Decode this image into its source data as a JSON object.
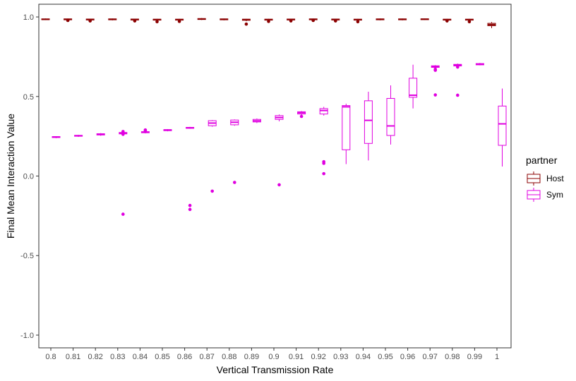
{
  "chart_data": {
    "type": "boxplot",
    "xlabel": "Vertical Transmission Rate",
    "ylabel": "Final Mean Interaction Value",
    "ylim": [
      -1.08,
      1.08
    ],
    "yticks": [
      -1.0,
      -0.5,
      0.0,
      0.5,
      1.0
    ],
    "ytick_labels": [
      "-1.0",
      "-0.5",
      "0.0",
      "0.5",
      "1.0"
    ],
    "categories": [
      "0.8",
      "0.81",
      "0.82",
      "0.83",
      "0.84",
      "0.85",
      "0.86",
      "0.87",
      "0.88",
      "0.89",
      "0.9",
      "0.91",
      "0.92",
      "0.93",
      "0.94",
      "0.95",
      "0.96",
      "0.97",
      "0.98",
      "0.99",
      "1"
    ],
    "grid": false,
    "legend": {
      "title": "partner",
      "position": "right"
    },
    "series": [
      {
        "name": "Host",
        "color": "#8b0000",
        "boxes": [
          {
            "q1": 0.983,
            "median": 0.985,
            "q3": 0.988,
            "wlo": 0.98,
            "whi": 0.99,
            "outliers": []
          },
          {
            "q1": 0.982,
            "median": 0.985,
            "q3": 0.988,
            "wlo": 0.979,
            "whi": 0.99,
            "outliers": [
              0.978
            ]
          },
          {
            "q1": 0.981,
            "median": 0.984,
            "q3": 0.987,
            "wlo": 0.978,
            "whi": 0.989,
            "outliers": [
              0.975
            ]
          },
          {
            "q1": 0.982,
            "median": 0.985,
            "q3": 0.988,
            "wlo": 0.979,
            "whi": 0.99,
            "outliers": []
          },
          {
            "q1": 0.981,
            "median": 0.984,
            "q3": 0.987,
            "wlo": 0.978,
            "whi": 0.989,
            "outliers": [
              0.975
            ]
          },
          {
            "q1": 0.98,
            "median": 0.983,
            "q3": 0.986,
            "wlo": 0.977,
            "whi": 0.988,
            "outliers": [
              0.97
            ]
          },
          {
            "q1": 0.98,
            "median": 0.983,
            "q3": 0.986,
            "wlo": 0.976,
            "whi": 0.988,
            "outliers": [
              0.972
            ]
          },
          {
            "q1": 0.984,
            "median": 0.987,
            "q3": 0.99,
            "wlo": 0.981,
            "whi": 0.993,
            "outliers": []
          },
          {
            "q1": 0.982,
            "median": 0.985,
            "q3": 0.988,
            "wlo": 0.979,
            "whi": 0.99,
            "outliers": []
          },
          {
            "q1": 0.979,
            "median": 0.983,
            "q3": 0.986,
            "wlo": 0.973,
            "whi": 0.988,
            "outliers": [
              0.955
            ]
          },
          {
            "q1": 0.98,
            "median": 0.983,
            "q3": 0.986,
            "wlo": 0.976,
            "whi": 0.988,
            "outliers": [
              0.972
            ]
          },
          {
            "q1": 0.981,
            "median": 0.984,
            "q3": 0.987,
            "wlo": 0.977,
            "whi": 0.989,
            "outliers": [
              0.975
            ]
          },
          {
            "q1": 0.982,
            "median": 0.985,
            "q3": 0.988,
            "wlo": 0.979,
            "whi": 0.99,
            "outliers": [
              0.978
            ]
          },
          {
            "q1": 0.981,
            "median": 0.984,
            "q3": 0.987,
            "wlo": 0.978,
            "whi": 0.989,
            "outliers": [
              0.975
            ]
          },
          {
            "q1": 0.98,
            "median": 0.983,
            "q3": 0.986,
            "wlo": 0.977,
            "whi": 0.988,
            "outliers": [
              0.97
            ]
          },
          {
            "q1": 0.982,
            "median": 0.985,
            "q3": 0.988,
            "wlo": 0.979,
            "whi": 0.99,
            "outliers": []
          },
          {
            "q1": 0.982,
            "median": 0.985,
            "q3": 0.988,
            "wlo": 0.979,
            "whi": 0.99,
            "outliers": []
          },
          {
            "q1": 0.983,
            "median": 0.986,
            "q3": 0.988,
            "wlo": 0.981,
            "whi": 0.99,
            "outliers": []
          },
          {
            "q1": 0.98,
            "median": 0.983,
            "q3": 0.986,
            "wlo": 0.976,
            "whi": 0.988,
            "outliers": [
              0.975
            ]
          },
          {
            "q1": 0.98,
            "median": 0.983,
            "q3": 0.986,
            "wlo": 0.977,
            "whi": 0.988,
            "outliers": [
              0.97
            ]
          },
          {
            "q1": 0.945,
            "median": 0.952,
            "q3": 0.96,
            "wlo": 0.93,
            "whi": 0.968,
            "outliers": []
          }
        ]
      },
      {
        "name": "Sym",
        "color": "#e000e0",
        "boxes": [
          {
            "q1": 0.242,
            "median": 0.245,
            "q3": 0.248,
            "wlo": 0.238,
            "whi": 0.25,
            "outliers": []
          },
          {
            "q1": 0.25,
            "median": 0.253,
            "q3": 0.256,
            "wlo": 0.246,
            "whi": 0.259,
            "outliers": []
          },
          {
            "q1": 0.258,
            "median": 0.262,
            "q3": 0.266,
            "wlo": 0.253,
            "whi": 0.27,
            "outliers": []
          },
          {
            "q1": 0.265,
            "median": 0.27,
            "q3": 0.274,
            "wlo": 0.259,
            "whi": 0.278,
            "outliers": [
              0.262,
              0.28,
              -0.24
            ]
          },
          {
            "q1": 0.272,
            "median": 0.276,
            "q3": 0.279,
            "wlo": 0.268,
            "whi": 0.283,
            "outliers": [
              0.29,
              0.285
            ]
          },
          {
            "q1": 0.285,
            "median": 0.289,
            "q3": 0.292,
            "wlo": 0.281,
            "whi": 0.295,
            "outliers": []
          },
          {
            "q1": 0.3,
            "median": 0.303,
            "q3": 0.306,
            "wlo": 0.297,
            "whi": 0.309,
            "outliers": [
              -0.185,
              -0.21
            ]
          },
          {
            "q1": 0.316,
            "median": 0.333,
            "q3": 0.348,
            "wlo": 0.31,
            "whi": 0.352,
            "outliers": [
              -0.095
            ]
          },
          {
            "q1": 0.322,
            "median": 0.338,
            "q3": 0.352,
            "wlo": 0.316,
            "whi": 0.356,
            "outliers": [
              -0.04
            ]
          },
          {
            "q1": 0.34,
            "median": 0.347,
            "q3": 0.356,
            "wlo": 0.333,
            "whi": 0.362,
            "outliers": []
          },
          {
            "q1": 0.356,
            "median": 0.368,
            "q3": 0.38,
            "wlo": 0.344,
            "whi": 0.387,
            "outliers": [
              -0.055
            ]
          },
          {
            "q1": 0.39,
            "median": 0.398,
            "q3": 0.404,
            "wlo": 0.382,
            "whi": 0.409,
            "outliers": [
              0.375
            ]
          },
          {
            "q1": 0.39,
            "median": 0.412,
            "q3": 0.424,
            "wlo": 0.38,
            "whi": 0.435,
            "outliers": [
              0.09,
              0.08,
              0.015
            ]
          },
          {
            "q1": 0.165,
            "median": 0.435,
            "q3": 0.443,
            "wlo": 0.075,
            "whi": 0.455,
            "outliers": []
          },
          {
            "q1": 0.205,
            "median": 0.35,
            "q3": 0.473,
            "wlo": 0.098,
            "whi": 0.53,
            "outliers": []
          },
          {
            "q1": 0.255,
            "median": 0.315,
            "q3": 0.488,
            "wlo": 0.198,
            "whi": 0.57,
            "outliers": []
          },
          {
            "q1": 0.495,
            "median": 0.508,
            "q3": 0.615,
            "wlo": 0.425,
            "whi": 0.7,
            "outliers": []
          },
          {
            "q1": 0.683,
            "median": 0.688,
            "q3": 0.693,
            "wlo": 0.678,
            "whi": 0.697,
            "outliers": [
              0.672,
              0.665,
              0.51
            ]
          },
          {
            "q1": 0.692,
            "median": 0.697,
            "q3": 0.702,
            "wlo": 0.688,
            "whi": 0.707,
            "outliers": [
              0.685,
              0.508
            ]
          },
          {
            "q1": 0.699,
            "median": 0.703,
            "q3": 0.707,
            "wlo": 0.696,
            "whi": 0.711,
            "outliers": []
          },
          {
            "q1": 0.193,
            "median": 0.328,
            "q3": 0.44,
            "wlo": 0.06,
            "whi": 0.55,
            "outliers": []
          }
        ]
      }
    ]
  }
}
